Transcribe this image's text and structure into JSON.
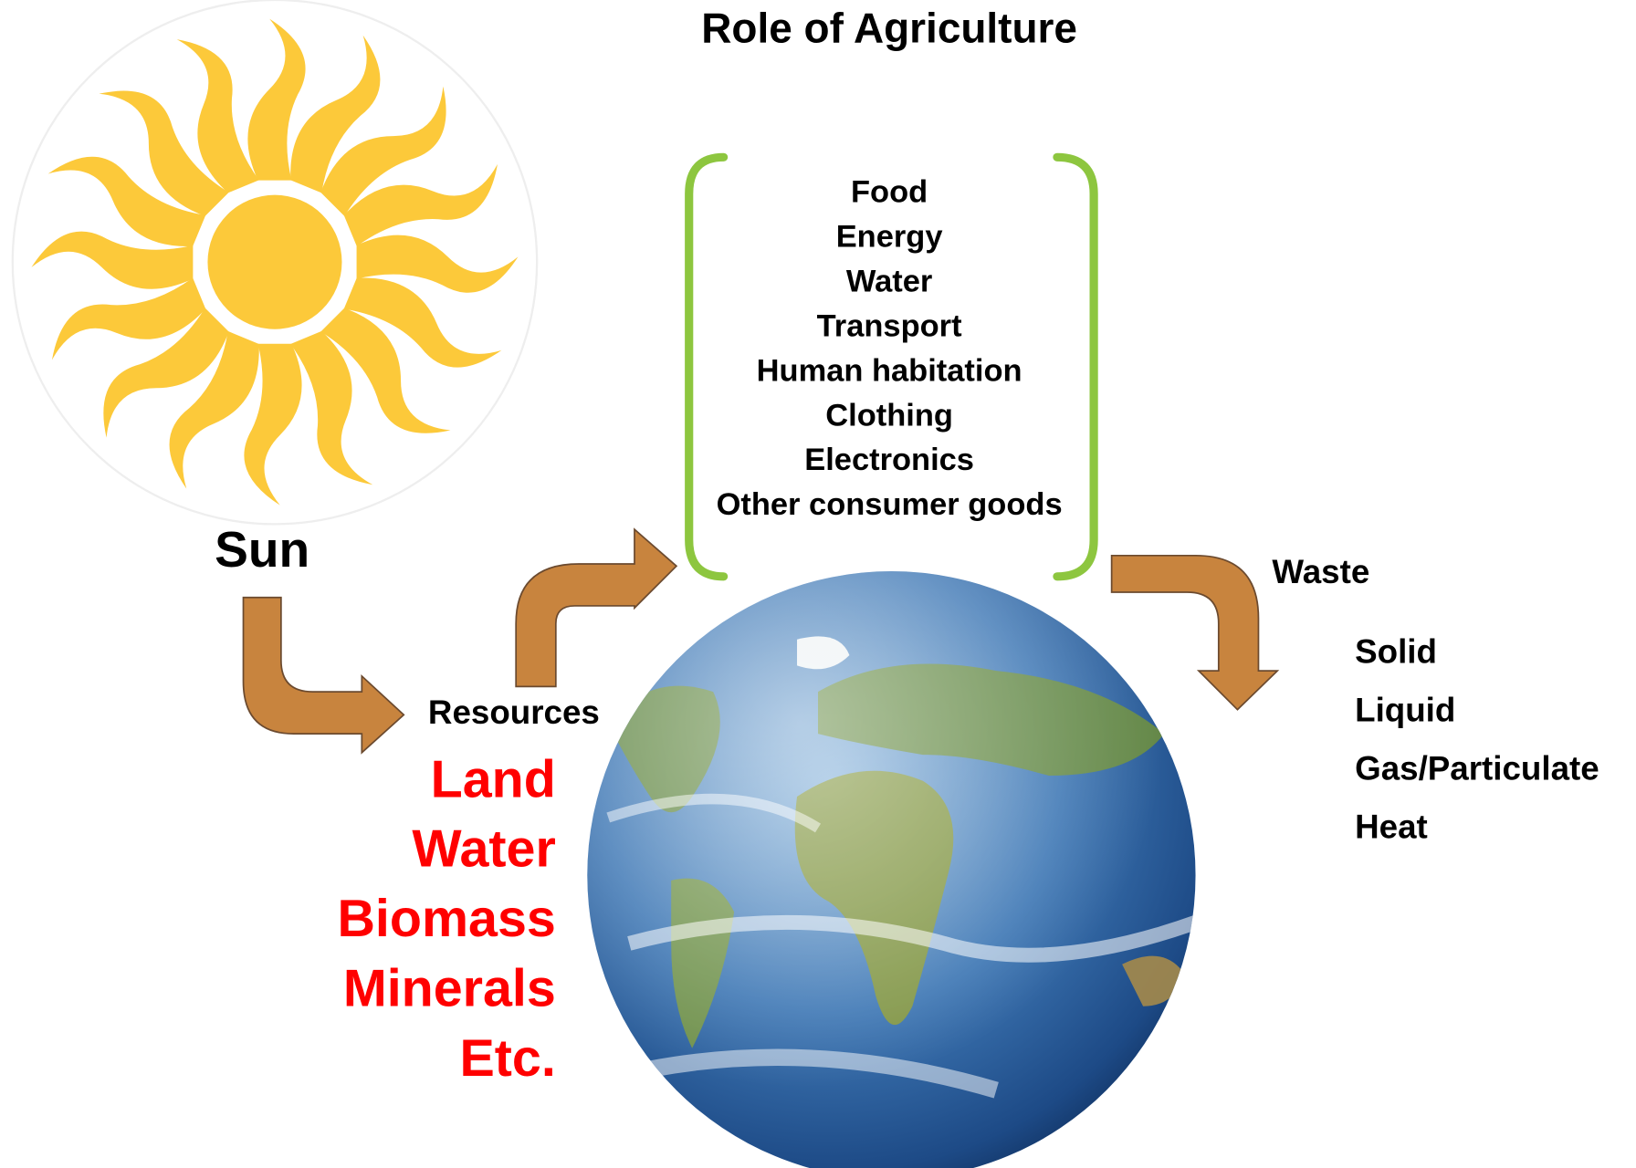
{
  "title": "Role of Agriculture",
  "sun": {
    "label": "Sun"
  },
  "resources": {
    "label": "Resources",
    "items": [
      "Land",
      "Water",
      "Biomass",
      "Minerals",
      "Etc."
    ]
  },
  "products": {
    "items": [
      "Food",
      "Energy",
      "Water",
      "Transport",
      "Human habitation",
      "Clothing",
      "Electronics",
      "Other consumer goods"
    ]
  },
  "waste": {
    "label": "Waste",
    "items": [
      "Solid",
      "Liquid",
      "Gas/Particulate",
      "Heat"
    ]
  }
}
